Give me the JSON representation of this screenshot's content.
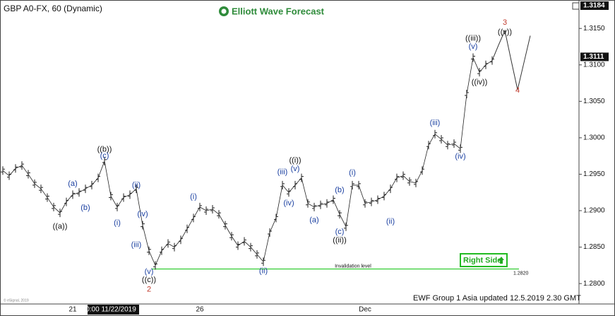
{
  "chart_data": {
    "type": "ohlc_line",
    "title": "GBP A0-FX, 60 (Dynamic)",
    "brand": "Elliott Wave Forecast",
    "footer": "EWF Group 1 Asia updated 12.5.2019 2.30 GMT",
    "copyright": "© eSignal, 2019",
    "badge": "Right Side",
    "categories": [
      null,
      null,
      null,
      null,
      null,
      null,
      null,
      null,
      null,
      null,
      null,
      "21",
      null,
      null,
      null,
      null,
      null,
      "0:00 11/22/2019",
      null,
      null,
      null,
      null,
      null,
      null,
      null,
      null,
      null,
      null,
      null,
      null,
      null,
      "26",
      null,
      null,
      null,
      null,
      null,
      null,
      null,
      null,
      null,
      null,
      null,
      null,
      null,
      null,
      null,
      null,
      null,
      null,
      null,
      null,
      null,
      null,
      null,
      null,
      null,
      "Dec",
      null,
      null,
      null,
      null,
      null,
      null,
      null,
      null,
      null,
      null,
      null,
      null,
      null,
      null,
      null,
      null,
      null,
      null,
      null,
      null,
      null,
      null,
      null,
      null,
      null,
      null
    ],
    "values": [
      1.2955,
      1.2948,
      1.2958,
      1.2962,
      1.295,
      1.2937,
      1.293,
      1.2918,
      1.2905,
      1.2897,
      1.2912,
      1.2922,
      1.2925,
      1.293,
      1.2935,
      1.2945,
      1.2968,
      1.292,
      1.2905,
      1.2918,
      1.2922,
      1.293,
      1.288,
      1.2845,
      1.2825,
      1.2845,
      1.2855,
      1.285,
      1.286,
      1.2875,
      1.289,
      1.2905,
      1.29,
      1.2902,
      1.2895,
      1.288,
      1.2865,
      1.2852,
      1.2858,
      1.285,
      1.284,
      1.283,
      1.287,
      1.289,
      1.2935,
      1.2925,
      1.2935,
      1.2945,
      1.291,
      1.2905,
      1.2908,
      1.291,
      1.2915,
      1.2895,
      1.2878,
      1.2935,
      1.2935,
      1.291,
      1.2912,
      1.2915,
      1.292,
      1.293,
      1.2945,
      1.2948,
      1.294,
      1.2938,
      1.2955,
      1.299,
      1.3005,
      1.2998,
      1.299,
      1.2992,
      1.2985,
      1.306,
      1.311,
      1.309,
      1.31,
      1.3106,
      null,
      null,
      null,
      null,
      null,
      null
    ],
    "color": "#222222",
    "projection": [
      null,
      null,
      null,
      null,
      null,
      null,
      null,
      null,
      null,
      null,
      null,
      null,
      null,
      null,
      null,
      null,
      null,
      null,
      null,
      null,
      null,
      null,
      null,
      null,
      null,
      null,
      null,
      null,
      null,
      null,
      null,
      null,
      null,
      null,
      null,
      null,
      null,
      null,
      null,
      null,
      null,
      null,
      null,
      null,
      null,
      null,
      null,
      null,
      null,
      null,
      null,
      null,
      null,
      null,
      null,
      null,
      null,
      null,
      null,
      null,
      null,
      null,
      null,
      null,
      null,
      null,
      null,
      null,
      null,
      null,
      null,
      null,
      null,
      null,
      null,
      null,
      null,
      1.3106,
      1.3127,
      1.3147,
      1.3106,
      1.3066,
      1.3103,
      1.314
    ],
    "projection_color": "#333333",
    "ylim": [
      1.2772,
      1.3189
    ],
    "yticks": [
      {
        "value": 1.28,
        "label": "1.2800"
      },
      {
        "value": 1.285,
        "label": "1.2850"
      },
      {
        "value": 1.29,
        "label": "1.2900"
      },
      {
        "value": 1.295,
        "label": "1.2950"
      },
      {
        "value": 1.3,
        "label": "1.3000"
      },
      {
        "value": 1.305,
        "label": "1.3050"
      },
      {
        "value": 1.31,
        "label": "1.3100"
      },
      {
        "value": 1.315,
        "label": "1.3150"
      }
    ],
    "price_labels": [
      {
        "value": 1.3184,
        "label": "1.3184"
      },
      {
        "value": 1.3111,
        "label": "1.3111"
      }
    ],
    "invalidation": {
      "value": 1.282,
      "label": "1.2820",
      "text": "Invalidation level",
      "color": "#33cc33"
    },
    "annotations": [
      {
        "label": "(a)",
        "x": 11,
        "y": 1.2937,
        "color": "#1a3fa0"
      },
      {
        "label": "(b)",
        "x": 13,
        "y": 1.2904,
        "color": "#1a3fa0"
      },
      {
        "label": "((a))",
        "x": 9,
        "y": 1.2878,
        "color": "#111111"
      },
      {
        "label": "((b))",
        "x": 16,
        "y": 1.2984,
        "color": "#111111"
      },
      {
        "label": "(c)",
        "x": 16,
        "y": 1.2975,
        "color": "#1a3fa0"
      },
      {
        "label": "(i)",
        "x": 18,
        "y": 1.2883,
        "color": "#1a3fa0"
      },
      {
        "label": "(ii)",
        "x": 21,
        "y": 1.2935,
        "color": "#1a3fa0"
      },
      {
        "label": "(iv)",
        "x": 22,
        "y": 1.2895,
        "color": "#1a3fa0"
      },
      {
        "label": "(iii)",
        "x": 21,
        "y": 1.2853,
        "color": "#1a3fa0"
      },
      {
        "label": "(v)",
        "x": 23,
        "y": 1.2816,
        "color": "#1a3fa0"
      },
      {
        "label": "((c))",
        "x": 23,
        "y": 1.2805,
        "color": "#111111"
      },
      {
        "label": "2",
        "x": 23,
        "y": 1.2792,
        "color": "#c0392b"
      },
      {
        "label": "(i)",
        "x": 30,
        "y": 1.2919,
        "color": "#1a3fa0"
      },
      {
        "label": "(ii)",
        "x": 41,
        "y": 1.2817,
        "color": "#1a3fa0"
      },
      {
        "label": "(iii)",
        "x": 44,
        "y": 1.2953,
        "color": "#1a3fa0"
      },
      {
        "label": "((i))",
        "x": 46,
        "y": 1.2969,
        "color": "#111111"
      },
      {
        "label": "(v)",
        "x": 46,
        "y": 1.2957,
        "color": "#1a3fa0"
      },
      {
        "label": "(iv)",
        "x": 45,
        "y": 1.291,
        "color": "#1a3fa0"
      },
      {
        "label": "(a)",
        "x": 49,
        "y": 1.2887,
        "color": "#1a3fa0"
      },
      {
        "label": "(b)",
        "x": 53,
        "y": 1.2928,
        "color": "#1a3fa0"
      },
      {
        "label": "(c)",
        "x": 53,
        "y": 1.2871,
        "color": "#1a3fa0"
      },
      {
        "label": "((ii))",
        "x": 53,
        "y": 1.2859,
        "color": "#111111"
      },
      {
        "label": "(i)",
        "x": 55,
        "y": 1.2952,
        "color": "#1a3fa0"
      },
      {
        "label": "(ii)",
        "x": 61,
        "y": 1.2885,
        "color": "#1a3fa0"
      },
      {
        "label": "(iii)",
        "x": 68,
        "y": 1.302,
        "color": "#1a3fa0"
      },
      {
        "label": "(iv)",
        "x": 72,
        "y": 1.2974,
        "color": "#1a3fa0"
      },
      {
        "label": "(v)",
        "x": 74,
        "y": 1.3125,
        "color": "#1a3fa0"
      },
      {
        "label": "((iii))",
        "x": 74,
        "y": 1.3136,
        "color": "#111111"
      },
      {
        "label": "((iv))",
        "x": 75,
        "y": 1.3076,
        "color": "#111111"
      },
      {
        "label": "3",
        "x": 79,
        "y": 1.3158,
        "color": "#c0392b"
      },
      {
        "label": "((v))",
        "x": 79,
        "y": 1.3145,
        "color": "#111111"
      },
      {
        "label": "4",
        "x": 81,
        "y": 1.3065,
        "color": "#c0392b"
      }
    ]
  }
}
